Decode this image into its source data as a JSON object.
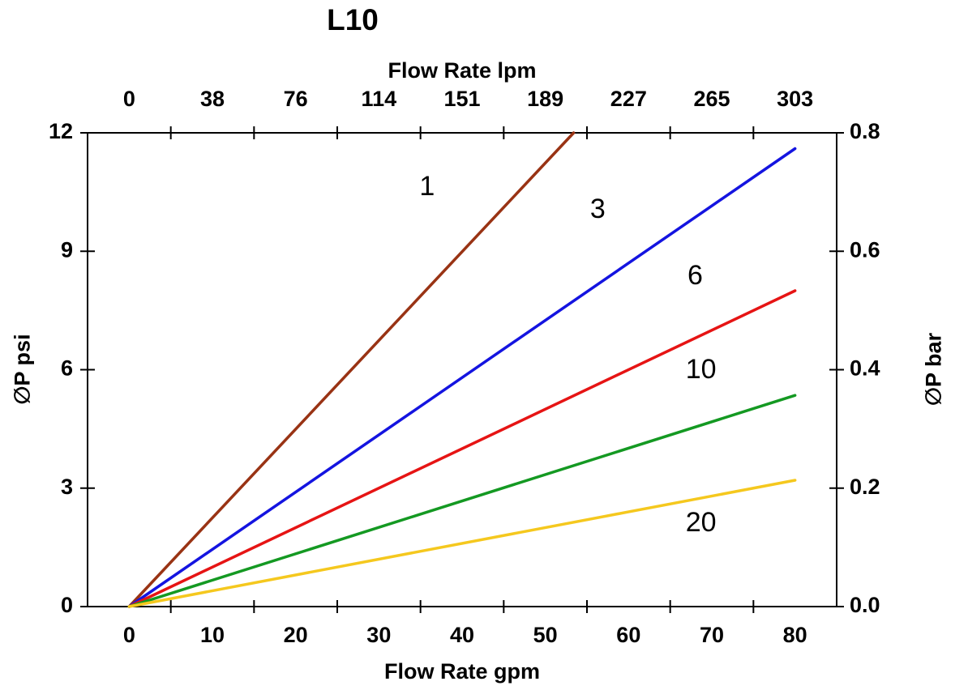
{
  "chart_data": {
    "type": "line",
    "title": "L10",
    "xlabel_top": "Flow Rate lpm",
    "xlabel_bottom": "Flow Rate gpm",
    "ylabel_left": "∅P psi",
    "ylabel_right": "∅P bar",
    "xlim_gpm": [
      -5,
      85
    ],
    "ylim_psi": [
      0,
      12
    ],
    "x_ticks_gpm": [
      0,
      10,
      20,
      30,
      40,
      50,
      60,
      70,
      80
    ],
    "x_ticks_lpm": [
      0,
      38,
      76,
      114,
      151,
      189,
      227,
      265,
      303
    ],
    "x_tick_marks_gpm": [
      5,
      15,
      25,
      35,
      45,
      55,
      65,
      75
    ],
    "y_ticks_psi": [
      0,
      3,
      6,
      9,
      12
    ],
    "y_ticks_bar": [
      0.0,
      0.2,
      0.4,
      0.6,
      0.8
    ],
    "grid": false,
    "axis_color": "#000000",
    "series": [
      {
        "name": "1",
        "color": "#993314",
        "points": [
          [
            0,
            0
          ],
          [
            53.4,
            12.0
          ]
        ]
      },
      {
        "name": "3",
        "color": "#1414e0",
        "points": [
          [
            0,
            0
          ],
          [
            80,
            11.6
          ]
        ]
      },
      {
        "name": "6",
        "color": "#e61414",
        "points": [
          [
            0,
            0
          ],
          [
            80,
            8.0
          ]
        ]
      },
      {
        "name": "10",
        "color": "#149922",
        "points": [
          [
            0,
            0
          ],
          [
            80,
            5.35
          ]
        ]
      },
      {
        "name": "20",
        "color": "#f5c81e",
        "points": [
          [
            0,
            0
          ],
          [
            80,
            3.2
          ]
        ]
      }
    ],
    "series_labels": [
      {
        "text": "1",
        "gpm": 35.8,
        "psi": 10.6
      },
      {
        "text": "3",
        "gpm": 56.3,
        "psi": 10.03
      },
      {
        "text": "6",
        "gpm": 68.0,
        "psi": 8.35
      },
      {
        "text": "10",
        "gpm": 68.7,
        "psi": 5.97
      },
      {
        "text": "20",
        "gpm": 68.7,
        "psi": 2.09
      }
    ]
  }
}
